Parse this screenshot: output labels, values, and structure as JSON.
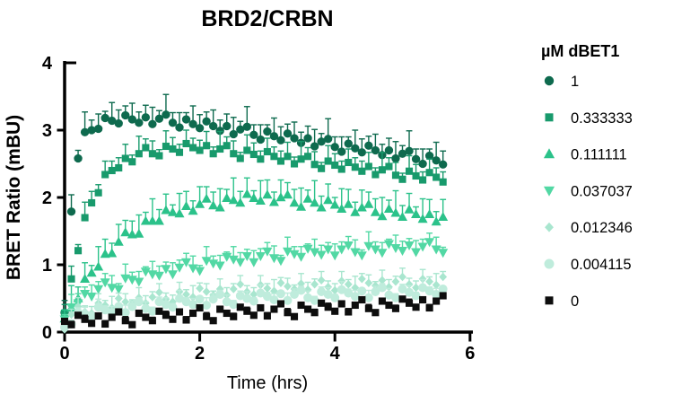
{
  "chart_data": {
    "type": "scatter",
    "title": "BRD2/CRBN",
    "xlabel": "Time (hrs)",
    "ylabel": "BRET Ratio (mBU)",
    "legend_title": "µM dBET1",
    "legend_position": "right",
    "grid": false,
    "error_bars": "upper",
    "xlim": [
      0,
      6
    ],
    "ylim": [
      0,
      4
    ],
    "x_ticks": [
      0,
      2,
      4,
      6
    ],
    "y_ticks": [
      0,
      1,
      2,
      3,
      4
    ],
    "axis_color": "#000000",
    "background_color": "#ffffff",
    "x": [
      0,
      0.1,
      0.2,
      0.3,
      0.4,
      0.5,
      0.6,
      0.7,
      0.8,
      0.9,
      1,
      1.1,
      1.2,
      1.3,
      1.4,
      1.5,
      1.6,
      1.7,
      1.8,
      1.9,
      2,
      2.1,
      2.2,
      2.3,
      2.4,
      2.5,
      2.6,
      2.7,
      2.8,
      2.9,
      3,
      3.1,
      3.2,
      3.3,
      3.4,
      3.5,
      3.6,
      3.7,
      3.8,
      3.9,
      4,
      4.1,
      4.2,
      4.3,
      4.4,
      4.5,
      4.6,
      4.7,
      4.8,
      4.9,
      5,
      5.1,
      5.2,
      5.3,
      5.4,
      5.5,
      5.6
    ],
    "series": [
      {
        "label": "1",
        "marker": "circle",
        "color": "#0e6a4e",
        "size": 9,
        "y": [
          0.29,
          1.79,
          2.58,
          2.97,
          3.0,
          3.02,
          3.18,
          3.14,
          3.1,
          3.22,
          3.16,
          3.11,
          3.19,
          3.09,
          3.17,
          3.23,
          3.11,
          3.04,
          3.16,
          3.09,
          3.03,
          3.13,
          3.06,
          2.99,
          3.06,
          2.94,
          3.01,
          3.05,
          2.93,
          2.86,
          2.98,
          2.91,
          2.85,
          2.95,
          2.88,
          2.81,
          2.88,
          2.76,
          2.83,
          2.87,
          2.75,
          2.68,
          2.8,
          2.73,
          2.67,
          2.77,
          2.7,
          2.63,
          2.7,
          2.58,
          2.65,
          2.69,
          2.57,
          2.5,
          2.62,
          2.55,
          2.49
        ],
        "e_cycle": [
          0.18,
          0.25,
          0.12,
          0.3,
          0.15,
          0.22,
          0.1,
          0.27,
          0.2,
          0.14,
          0.24,
          0.16
        ]
      },
      {
        "label": "0.333333",
        "marker": "square",
        "color": "#189a6c",
        "size": 9,
        "y": [
          0.28,
          0.79,
          1.21,
          1.7,
          1.92,
          2.07,
          2.34,
          2.4,
          2.44,
          2.58,
          2.53,
          2.65,
          2.74,
          2.65,
          2.62,
          2.76,
          2.72,
          2.67,
          2.8,
          2.74,
          2.7,
          2.77,
          2.65,
          2.72,
          2.77,
          2.65,
          2.58,
          2.7,
          2.64,
          2.57,
          2.68,
          2.61,
          2.54,
          2.61,
          2.5,
          2.57,
          2.61,
          2.49,
          2.43,
          2.54,
          2.48,
          2.42,
          2.52,
          2.45,
          2.39,
          2.46,
          2.34,
          2.41,
          2.46,
          2.33,
          2.27,
          2.39,
          2.32,
          2.26,
          2.37,
          2.3,
          2.23
        ],
        "e_cycle": [
          0.13,
          0.19,
          0.09,
          0.23,
          0.17,
          0.12,
          0.2,
          0.14,
          0.15,
          0.21,
          0.1,
          0.26
        ]
      },
      {
        "label": "0.111111",
        "marker": "triangle-up",
        "color": "#2bc28a",
        "size": 10,
        "y": [
          0.2,
          0.36,
          0.5,
          0.79,
          0.88,
          0.97,
          1.16,
          1.17,
          1.34,
          1.48,
          1.45,
          1.46,
          1.65,
          1.65,
          1.65,
          1.81,
          1.78,
          1.76,
          1.87,
          1.8,
          1.9,
          1.98,
          1.88,
          1.85,
          1.99,
          1.96,
          1.92,
          2.05,
          1.99,
          1.95,
          2.04,
          1.93,
          2.0,
          2.04,
          1.92,
          1.86,
          1.98,
          1.92,
          1.85,
          1.96,
          1.89,
          1.83,
          1.9,
          1.78,
          1.85,
          1.9,
          1.78,
          1.72,
          1.83,
          1.77,
          1.71,
          1.82,
          1.75,
          1.68,
          1.75,
          1.64,
          1.71
        ],
        "e_cycle": [
          0.13,
          0.33,
          0.17,
          0.24,
          0.11,
          0.3,
          0.22,
          0.15,
          0.26,
          0.18,
          0.2,
          0.28
        ]
      },
      {
        "label": "0.037037",
        "marker": "triangle-down",
        "color": "#52d8a4",
        "size": 10,
        "y": [
          0.19,
          0.37,
          0.43,
          0.57,
          0.53,
          0.64,
          0.74,
          0.66,
          0.64,
          0.8,
          0.78,
          0.75,
          0.9,
          0.86,
          0.84,
          0.94,
          0.86,
          0.96,
          1.04,
          0.95,
          0.91,
          1.06,
          1.02,
          0.99,
          1.12,
          1.08,
          1.04,
          1.13,
          1.04,
          1.13,
          1.2,
          1.1,
          1.06,
          1.2,
          1.16,
          1.12,
          1.24,
          1.19,
          1.15,
          1.23,
          1.14,
          1.23,
          1.29,
          1.19,
          1.14,
          1.28,
          1.23,
          1.18,
          1.31,
          1.25,
          1.21,
          1.29,
          1.19,
          1.27,
          1.34,
          1.23,
          1.18
        ],
        "e_cycle": [
          0.07,
          0.19,
          0.14,
          0.1,
          0.17,
          0.11,
          0.13,
          0.18,
          0.08,
          0.21,
          0.11,
          0.15
        ]
      },
      {
        "label": "0.012346",
        "marker": "diamond",
        "color": "#a9e6cf",
        "size": 8,
        "y": [
          0.04,
          0.26,
          0.38,
          0.3,
          0.28,
          0.43,
          0.4,
          0.36,
          0.5,
          0.45,
          0.42,
          0.51,
          0.43,
          0.52,
          0.59,
          0.49,
          0.45,
          0.6,
          0.56,
          0.52,
          0.65,
          0.6,
          0.55,
          0.64,
          0.55,
          0.64,
          0.71,
          0.6,
          0.56,
          0.7,
          0.65,
          0.61,
          0.73,
          0.68,
          0.64,
          0.72,
          0.63,
          0.71,
          0.77,
          0.67,
          0.62,
          0.76,
          0.71,
          0.66,
          0.79,
          0.73,
          0.69,
          0.77,
          0.67,
          0.75,
          0.82,
          0.71,
          0.66,
          0.79,
          0.75,
          0.7,
          0.82
        ],
        "e_cycle": [
          0.11,
          0.08,
          0.13,
          0.09,
          0.1,
          0.14,
          0.07,
          0.17,
          0.08,
          0.12,
          0.06,
          0.15
        ]
      },
      {
        "label": "0.004115",
        "marker": "circle",
        "color": "#bfecdc",
        "size": 9.5,
        "y": [
          0.07,
          0.12,
          0.29,
          0.27,
          0.24,
          0.37,
          0.33,
          0.29,
          0.38,
          0.29,
          0.38,
          0.45,
          0.35,
          0.31,
          0.45,
          0.41,
          0.37,
          0.5,
          0.45,
          0.41,
          0.49,
          0.4,
          0.49,
          0.56,
          0.45,
          0.41,
          0.54,
          0.5,
          0.46,
          0.58,
          0.53,
          0.48,
          0.57,
          0.47,
          0.56,
          0.62,
          0.51,
          0.47,
          0.6,
          0.56,
          0.51,
          0.63,
          0.58,
          0.53,
          0.61,
          0.51,
          0.6,
          0.66,
          0.55,
          0.51,
          0.64,
          0.59,
          0.54,
          0.66,
          0.61,
          0.56,
          0.64
        ],
        "e_cycle": [
          0.1,
          0.06,
          0.07,
          0.1,
          0.05,
          0.12,
          0.06,
          0.09,
          0.04,
          0.11,
          0.08,
          0.06
        ]
      },
      {
        "label": "0",
        "marker": "square",
        "color": "#0d0d0d",
        "size": 9,
        "y": [
          0.16,
          0.11,
          0.25,
          0.19,
          0.13,
          0.24,
          0.12,
          0.22,
          0.3,
          0.17,
          0.11,
          0.28,
          0.22,
          0.17,
          0.31,
          0.25,
          0.19,
          0.3,
          0.18,
          0.28,
          0.36,
          0.23,
          0.17,
          0.34,
          0.28,
          0.23,
          0.37,
          0.31,
          0.25,
          0.36,
          0.24,
          0.34,
          0.42,
          0.29,
          0.23,
          0.4,
          0.34,
          0.29,
          0.43,
          0.37,
          0.31,
          0.42,
          0.3,
          0.4,
          0.48,
          0.35,
          0.29,
          0.46,
          0.4,
          0.35,
          0.49,
          0.43,
          0.37,
          0.48,
          0.36,
          0.46,
          0.54
        ],
        "e_cycle": [
          0.03,
          0.05,
          0.02,
          0.06,
          0.04,
          0.03,
          0.05,
          0.02,
          0.04,
          0.06,
          0.03,
          0.04
        ]
      }
    ]
  }
}
